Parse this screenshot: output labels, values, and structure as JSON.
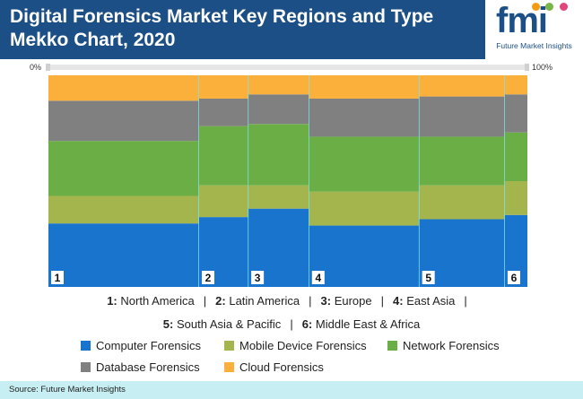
{
  "title_line1": "Digital Forensics Market Key Regions and Type",
  "title_line2": "Mekko Chart, 2020",
  "logo": {
    "mark": "fmi",
    "subtitle": "Future Market Insights"
  },
  "axis": {
    "left_label": "0%",
    "right_label": "100%"
  },
  "region_legend": {
    "line1": [
      {
        "num": "1:",
        "name": "North America"
      },
      {
        "num": "2:",
        "name": "Latin America"
      },
      {
        "num": "3:",
        "name": "Europe"
      },
      {
        "num": "4:",
        "name": "East Asia"
      }
    ],
    "line2": [
      {
        "num": "5:",
        "name": "South Asia & Pacific"
      },
      {
        "num": "6:",
        "name": "Middle East & Africa"
      }
    ]
  },
  "source": "Source: Future Market Insights",
  "chart_data": {
    "type": "mekko",
    "columns": [
      {
        "label": "1",
        "region": "North America",
        "width": 0.335
      },
      {
        "label": "2",
        "region": "Latin America",
        "width": 0.11
      },
      {
        "label": "3",
        "region": "Europe",
        "width": 0.135
      },
      {
        "label": "4",
        "region": "East Asia",
        "width": 0.245
      },
      {
        "label": "5",
        "region": "South Asia & Pacific",
        "width": 0.19
      },
      {
        "label": "6",
        "region": "Middle East & Africa",
        "width": 0.05
      }
    ],
    "series": [
      {
        "name": "Computer Forensics",
        "color": "#1874cd",
        "values": [
          0.3,
          0.33,
          0.37,
          0.29,
          0.32,
          0.34
        ]
      },
      {
        "name": "Mobile Device Forensics",
        "color": "#a5b54d",
        "values": [
          0.13,
          0.15,
          0.11,
          0.16,
          0.16,
          0.16
        ]
      },
      {
        "name": "Network Forensics",
        "color": "#6cae46",
        "values": [
          0.26,
          0.28,
          0.29,
          0.26,
          0.23,
          0.23
        ]
      },
      {
        "name": "Database Forensics",
        "color": "#808080",
        "values": [
          0.19,
          0.13,
          0.14,
          0.18,
          0.19,
          0.18
        ]
      },
      {
        "name": "Cloud Forensics",
        "color": "#fbb03b",
        "values": [
          0.12,
          0.11,
          0.09,
          0.11,
          0.1,
          0.09
        ]
      }
    ],
    "ylim": [
      0,
      1
    ]
  }
}
